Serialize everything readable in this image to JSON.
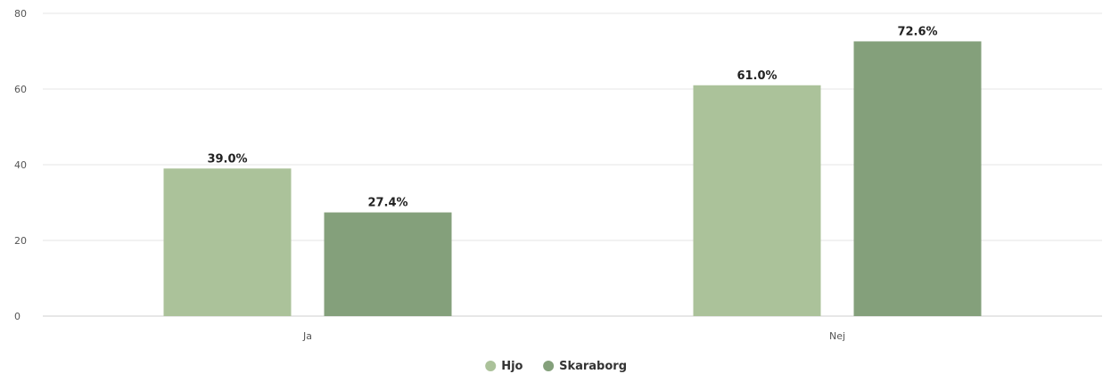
{
  "chart_data": {
    "type": "bar",
    "categories": [
      "Ja",
      "Nej"
    ],
    "series": [
      {
        "name": "Hjo",
        "values": [
          39.0,
          61.0
        ],
        "labels": [
          "39.0%",
          "61.0%"
        ],
        "color": "#abc29a"
      },
      {
        "name": "Skaraborg",
        "values": [
          27.4,
          72.6
        ],
        "labels": [
          "27.4%",
          "72.6%"
        ],
        "color": "#84a07b"
      }
    ],
    "yticks": [
      0,
      20,
      40,
      60,
      80
    ],
    "ylim": [
      0,
      80
    ],
    "grid": true,
    "legend_position": "bottom-center"
  }
}
